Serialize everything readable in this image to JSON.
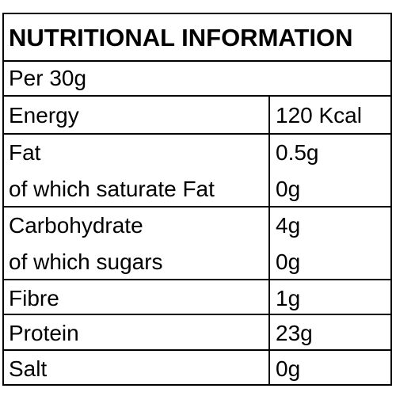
{
  "title": "NUTRITIONAL INFORMATION",
  "serving": "Per 30g",
  "rows": [
    {
      "label": "Energy",
      "value": "120 Kcal"
    },
    {
      "label": "Fat",
      "value": "0.5g"
    },
    {
      "label": "of which saturate Fat",
      "value": "0g"
    },
    {
      "label": "Carbohydrate",
      "value": "4g"
    },
    {
      "label": "of which sugars",
      "value": "0g"
    },
    {
      "label": "Fibre",
      "value": "1g"
    },
    {
      "label": "Protein",
      "value": "23g"
    },
    {
      "label": "Salt",
      "value": "0g"
    }
  ]
}
